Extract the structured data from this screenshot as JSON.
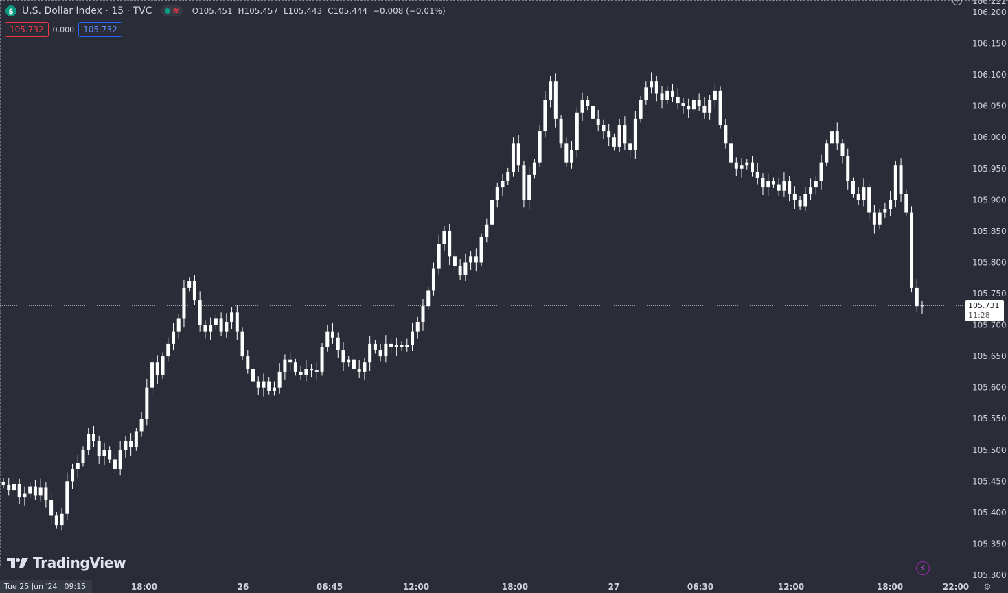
{
  "header": {
    "symbol_icon": "$",
    "title": "U.S. Dollar Index · 15 · TVC",
    "pill_flag": "≋",
    "ohlc": {
      "open": "O105.451",
      "high": "H105.457",
      "low": "L105.443",
      "close": "C105.444",
      "change": "−0.008 (−0.01%)"
    }
  },
  "quote": {
    "bid": "105.732",
    "spread": "0.000",
    "ask": "105.732"
  },
  "logo": {
    "text": "TradingView",
    "icon": "tradingview-logo-icon"
  },
  "last_price": {
    "value": "105.731",
    "countdown": "11:28"
  },
  "date_tag": {
    "date": "Tue 25 Jun '24",
    "time": "09:15"
  },
  "top_cut_label": "106.222",
  "colors": {
    "background": "#2a2d37",
    "candle": "#ffffff",
    "text": "#d1d4dc",
    "bid_box": "#f23645",
    "ask_box": "#2962ff",
    "indicator_bolt": "#9c27b0"
  },
  "icons": [
    "plus-circle-icon",
    "lightning-icon",
    "settings-icon"
  ],
  "chart_data": {
    "type": "candlestick",
    "title": "U.S. Dollar Index · 15 · TVC",
    "interval": "15",
    "ylim": [
      105.3,
      106.222
    ],
    "y_ticks": [
      "106.200",
      "106.150",
      "106.100",
      "106.050",
      "106.000",
      "105.950",
      "105.900",
      "105.850",
      "105.800",
      "105.750",
      "105.700",
      "105.650",
      "105.600",
      "105.550",
      "105.500",
      "105.450",
      "105.400",
      "105.350",
      "105.300"
    ],
    "x_ticks": [
      "18:00",
      "26",
      "06:45",
      "12:00",
      "18:00",
      "27",
      "06:30",
      "12:00",
      "18:00",
      "22:00"
    ],
    "current_price_line": 105.731,
    "grid": false,
    "series_close": [
      105.445,
      105.436,
      105.446,
      105.425,
      105.43,
      105.442,
      105.428,
      105.44,
      105.42,
      105.395,
      105.38,
      105.398,
      105.45,
      105.47,
      105.48,
      105.5,
      105.525,
      105.515,
      105.49,
      105.5,
      105.485,
      105.47,
      105.5,
      105.515,
      105.505,
      105.53,
      105.55,
      105.6,
      105.64,
      105.62,
      105.65,
      105.67,
      105.69,
      105.71,
      105.76,
      105.77,
      105.74,
      105.7,
      105.69,
      105.7,
      105.71,
      105.69,
      105.705,
      105.72,
      105.69,
      105.65,
      105.63,
      105.61,
      105.6,
      105.61,
      105.595,
      105.6,
      105.625,
      105.645,
      105.64,
      105.625,
      105.62,
      105.63,
      105.628,
      105.625,
      105.665,
      105.69,
      105.68,
      105.66,
      105.64,
      105.645,
      105.63,
      105.625,
      105.64,
      105.67,
      105.66,
      105.65,
      105.67,
      105.665,
      105.668,
      105.665,
      105.668,
      105.69,
      105.705,
      105.73,
      105.755,
      105.79,
      105.83,
      105.85,
      105.81,
      105.795,
      105.78,
      105.8,
      105.81,
      105.8,
      105.84,
      105.86,
      105.9,
      105.92,
      105.93,
      105.945,
      105.99,
      105.955,
      105.9,
      105.94,
      105.96,
      106.01,
      106.06,
      106.09,
      106.03,
      105.99,
      105.96,
      105.98,
      106.04,
      106.06,
      106.05,
      106.03,
      106.02,
      106.01,
      106.0,
      105.985,
      106.02,
      105.99,
      105.98,
      106.03,
      106.06,
      106.08,
      106.09,
      106.07,
      106.06,
      106.075,
      106.065,
      106.055,
      106.05,
      106.045,
      106.06,
      106.05,
      106.04,
      106.06,
      106.075,
      106.02,
      105.99,
      105.96,
      105.95,
      105.955,
      105.96,
      105.945,
      105.935,
      105.92,
      105.93,
      105.925,
      105.915,
      105.93,
      105.91,
      105.9,
      105.89,
      105.91,
      105.92,
      105.93,
      105.96,
      105.99,
      106.01,
      105.99,
      105.97,
      105.93,
      105.91,
      105.9,
      105.92,
      105.88,
      105.86,
      105.88,
      105.885,
      105.9,
      105.955,
      105.91,
      105.88,
      105.76,
      105.73,
      105.731
    ]
  }
}
